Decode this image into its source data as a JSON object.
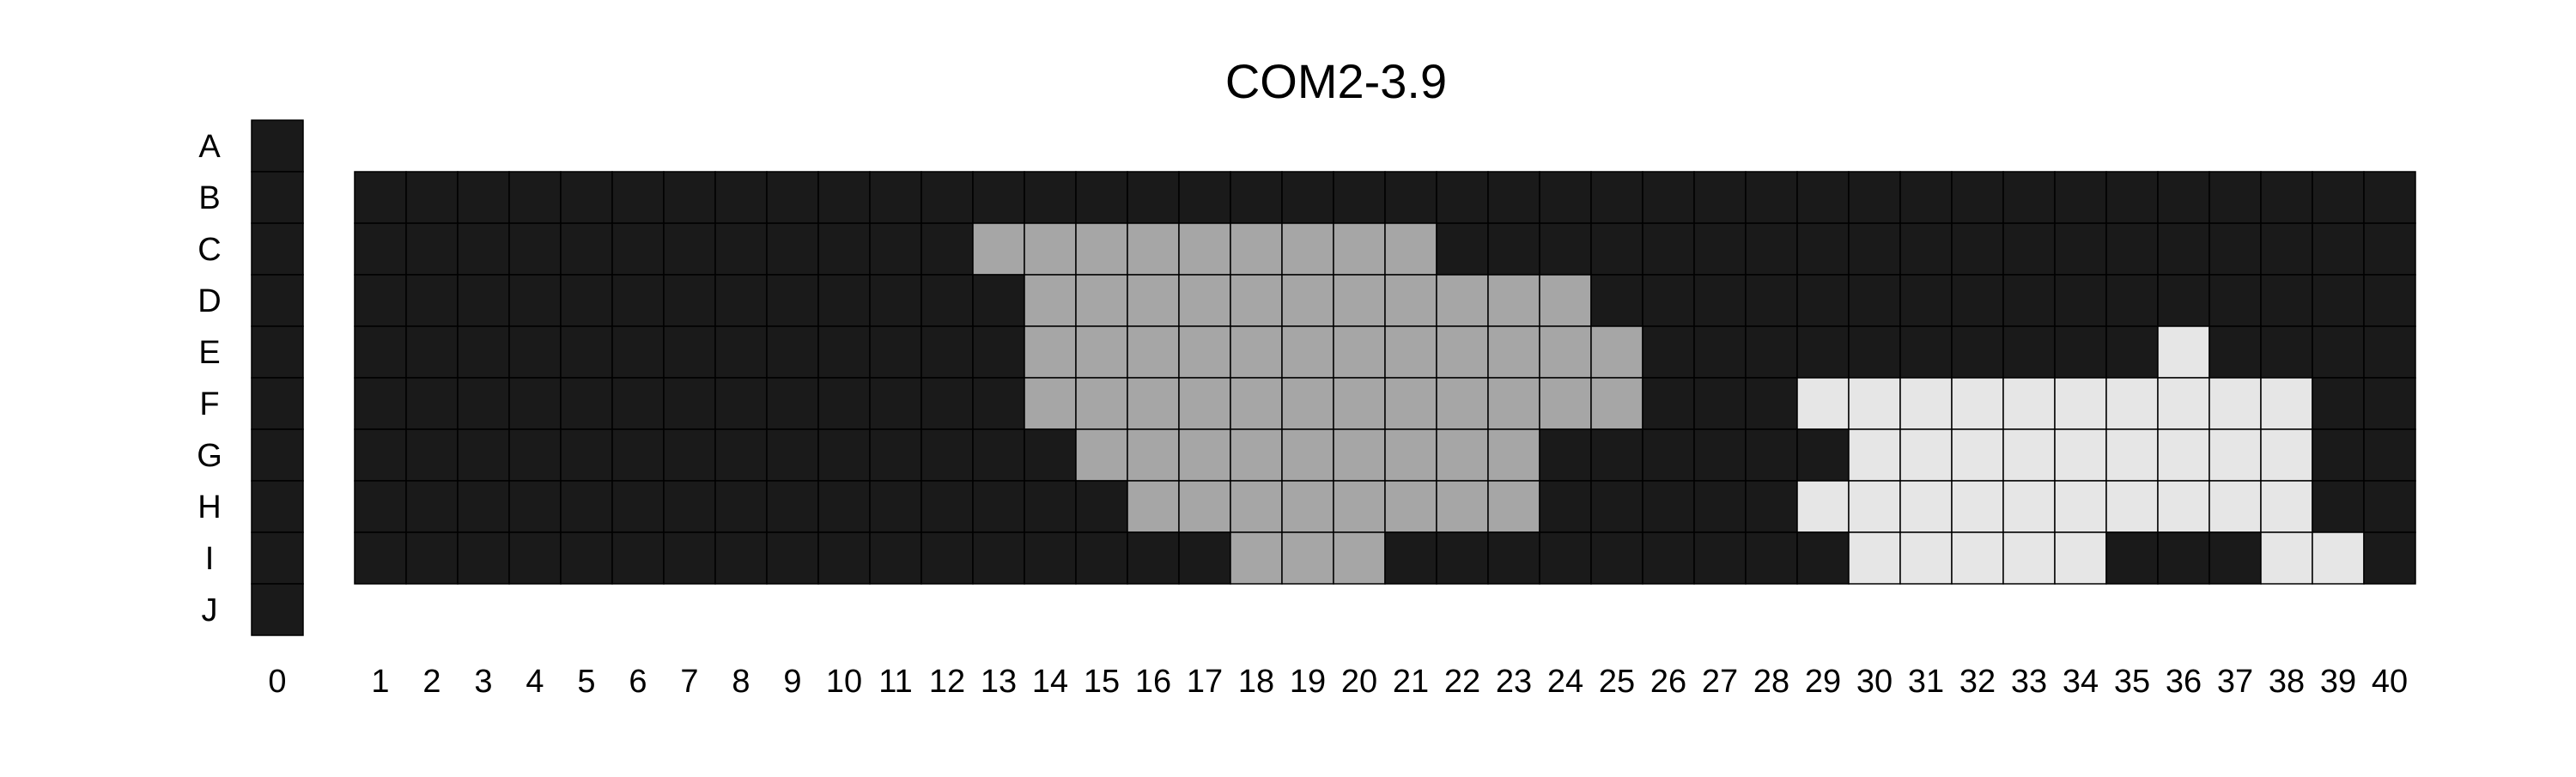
{
  "chart_data": {
    "type": "heatmap",
    "title": "COM2-3.9",
    "xlabel": "",
    "ylabel": "",
    "legend": "none",
    "grid": true,
    "rows": [
      "A",
      "B",
      "C",
      "D",
      "E",
      "F",
      "G",
      "H",
      "I",
      "J"
    ],
    "column_zero": "0",
    "columns": [
      "1",
      "2",
      "3",
      "4",
      "5",
      "6",
      "7",
      "8",
      "9",
      "10",
      "11",
      "12",
      "13",
      "14",
      "15",
      "16",
      "17",
      "18",
      "19",
      "20",
      "21",
      "22",
      "23",
      "24",
      "25",
      "26",
      "27",
      "28",
      "29",
      "30",
      "31",
      "32",
      "33",
      "34",
      "35",
      "36",
      "37",
      "38",
      "39",
      "40"
    ],
    "column_zero_rows": [
      "A",
      "B",
      "C",
      "D",
      "E",
      "F",
      "G",
      "H",
      "I",
      "J"
    ],
    "main_rows": [
      "B",
      "C",
      "D",
      "E",
      "F",
      "G",
      "H",
      "I"
    ],
    "level_colors": {
      "0": "#1a1a1a",
      "1": "#a6a6a6",
      "2": "#e6e6e6"
    },
    "column_zero_values": [
      0,
      0,
      0,
      0,
      0,
      0,
      0,
      0,
      0,
      0
    ],
    "values": [
      [
        0,
        0,
        0,
        0,
        0,
        0,
        0,
        0,
        0,
        0,
        0,
        0,
        0,
        0,
        0,
        0,
        0,
        0,
        0,
        0,
        0,
        0,
        0,
        0,
        0,
        0,
        0,
        0,
        0,
        0,
        0,
        0,
        0,
        0,
        0,
        0,
        0,
        0,
        0,
        0
      ],
      [
        0,
        0,
        0,
        0,
        0,
        0,
        0,
        0,
        0,
        0,
        0,
        0,
        1,
        1,
        1,
        1,
        1,
        1,
        1,
        1,
        1,
        0,
        0,
        0,
        0,
        0,
        0,
        0,
        0,
        0,
        0,
        0,
        0,
        0,
        0,
        0,
        0,
        0,
        0,
        0
      ],
      [
        0,
        0,
        0,
        0,
        0,
        0,
        0,
        0,
        0,
        0,
        0,
        0,
        0,
        1,
        1,
        1,
        1,
        1,
        1,
        1,
        1,
        1,
        1,
        1,
        0,
        0,
        0,
        0,
        0,
        0,
        0,
        0,
        0,
        0,
        0,
        0,
        0,
        0,
        0,
        0
      ],
      [
        0,
        0,
        0,
        0,
        0,
        0,
        0,
        0,
        0,
        0,
        0,
        0,
        0,
        1,
        1,
        1,
        1,
        1,
        1,
        1,
        1,
        1,
        1,
        1,
        1,
        0,
        0,
        0,
        0,
        0,
        0,
        0,
        0,
        0,
        0,
        2,
        0,
        0,
        0,
        0
      ],
      [
        0,
        0,
        0,
        0,
        0,
        0,
        0,
        0,
        0,
        0,
        0,
        0,
        0,
        1,
        1,
        1,
        1,
        1,
        1,
        1,
        1,
        1,
        1,
        1,
        1,
        0,
        0,
        0,
        2,
        2,
        2,
        2,
        2,
        2,
        2,
        2,
        2,
        2,
        0,
        0
      ],
      [
        0,
        0,
        0,
        0,
        0,
        0,
        0,
        0,
        0,
        0,
        0,
        0,
        0,
        0,
        1,
        1,
        1,
        1,
        1,
        1,
        1,
        1,
        1,
        0,
        0,
        0,
        0,
        0,
        0,
        2,
        2,
        2,
        2,
        2,
        2,
        2,
        2,
        2,
        0,
        0
      ],
      [
        0,
        0,
        0,
        0,
        0,
        0,
        0,
        0,
        0,
        0,
        0,
        0,
        0,
        0,
        0,
        1,
        1,
        1,
        1,
        1,
        1,
        1,
        1,
        0,
        0,
        0,
        0,
        0,
        2,
        2,
        2,
        2,
        2,
        2,
        2,
        2,
        2,
        2,
        0,
        0
      ],
      [
        0,
        0,
        0,
        0,
        0,
        0,
        0,
        0,
        0,
        0,
        0,
        0,
        0,
        0,
        0,
        0,
        0,
        1,
        1,
        1,
        0,
        0,
        0,
        0,
        0,
        0,
        0,
        0,
        0,
        2,
        2,
        2,
        2,
        2,
        0,
        0,
        0,
        2,
        2,
        0
      ]
    ]
  }
}
